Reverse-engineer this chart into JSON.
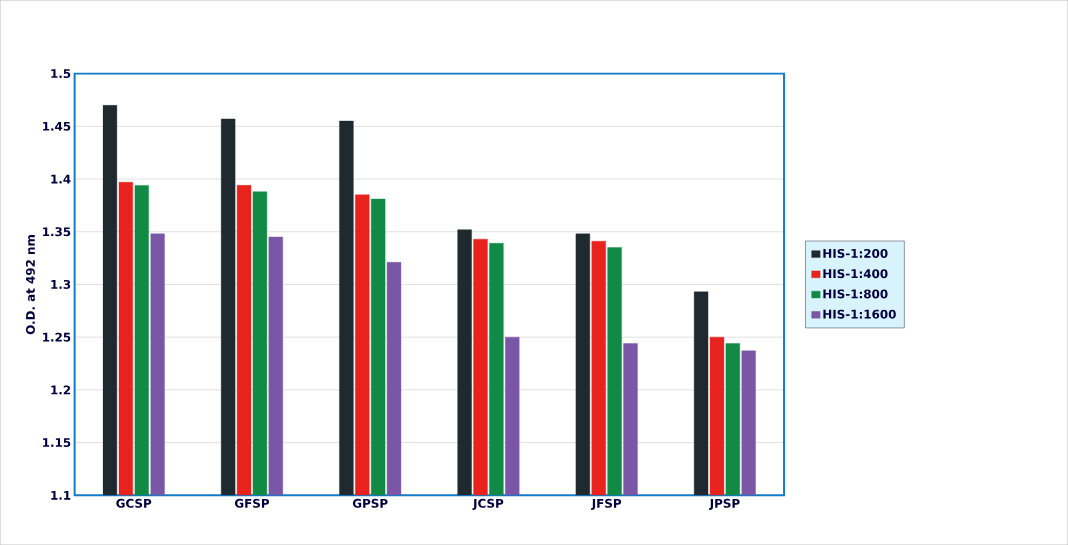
{
  "chart_data": {
    "type": "bar",
    "ylabel": "O.D. at 492 nm",
    "categories": [
      "GCSP",
      "GFSP",
      "GPSP",
      "JCSP",
      "JFSP",
      "JPSP"
    ],
    "series": [
      {
        "name": "HIS-1:200",
        "color": "#1f2a30",
        "values": [
          1.47,
          1.457,
          1.455,
          1.352,
          1.348,
          1.293
        ]
      },
      {
        "name": "HIS-1:400",
        "color": "#e8221c",
        "values": [
          1.397,
          1.394,
          1.385,
          1.343,
          1.341,
          1.25
        ]
      },
      {
        "name": "HIS-1:800",
        "color": "#108a45",
        "values": [
          1.394,
          1.388,
          1.381,
          1.339,
          1.335,
          1.244
        ]
      },
      {
        "name": "HIS-1:1600",
        "color": "#7a56a6",
        "values": [
          1.348,
          1.345,
          1.321,
          1.25,
          1.244,
          1.237
        ]
      }
    ],
    "ylim": [
      1.1,
      1.5
    ],
    "yticks": [
      1.1,
      1.15,
      1.2,
      1.25,
      1.3,
      1.35,
      1.4,
      1.45,
      1.5
    ],
    "grid": "y",
    "legend": "right"
  }
}
